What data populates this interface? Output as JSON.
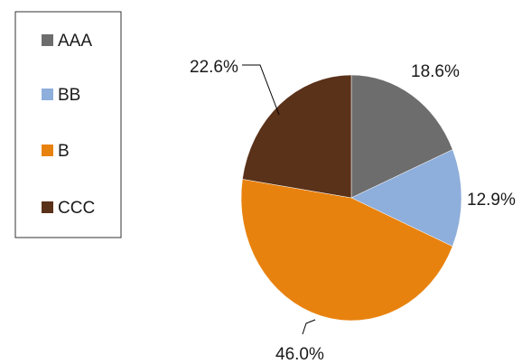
{
  "chart_data": {
    "type": "pie",
    "title": "",
    "categories": [
      "AAA",
      "BB",
      "B",
      "CCC"
    ],
    "values": [
      18.6,
      12.9,
      46.0,
      22.6
    ],
    "labels": [
      "18.6%",
      "12.9%",
      "46.0%",
      "22.6%"
    ],
    "colors": [
      "#6d6d6d",
      "#8eaedb",
      "#e8820e",
      "#5a3119"
    ],
    "legend": "left",
    "start": "12 o'clock",
    "direction": "clockwise"
  }
}
